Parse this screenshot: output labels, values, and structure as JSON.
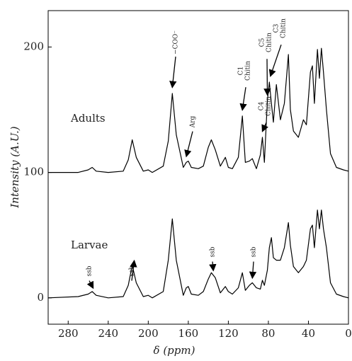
{
  "chart_data": {
    "type": "line",
    "xlabel": "δ (ppm)",
    "ylabel": "Intensity (A.U.)",
    "x": [
      300,
      270,
      260,
      256,
      252,
      240,
      225,
      220,
      216,
      212,
      205,
      200,
      196,
      185,
      180,
      176,
      172,
      165,
      162,
      160,
      157,
      150,
      145,
      140,
      137,
      133,
      128,
      123,
      120,
      116,
      110,
      106,
      103,
      99,
      96,
      92,
      88,
      86,
      84,
      81,
      79,
      77,
      75,
      72,
      68,
      64,
      60,
      58,
      55,
      50,
      45,
      42,
      38,
      36,
      34,
      31,
      29,
      27,
      25,
      22,
      18,
      12,
      5,
      0
    ],
    "series": [
      {
        "name": "Adults",
        "color": "#000000",
        "values": [
          100,
          100,
          102,
          104,
          101,
          100,
          101,
          110,
          126,
          112,
          101,
          102,
          100,
          105,
          125,
          163,
          130,
          104,
          108,
          109,
          104,
          103,
          105,
          120,
          126,
          118,
          105,
          112,
          104,
          103,
          112,
          145,
          108,
          109,
          111,
          103,
          114,
          128,
          108,
          157,
          172,
          155,
          140,
          170,
          142,
          155,
          194,
          150,
          133,
          128,
          142,
          138,
          180,
          185,
          155,
          198,
          175,
          199,
          180,
          150,
          115,
          104,
          102,
          101
        ]
      },
      {
        "name": "Larvae",
        "color": "#000000",
        "values": [
          0,
          1,
          3,
          5,
          2,
          0,
          1,
          10,
          26,
          12,
          1,
          2,
          0,
          5,
          30,
          63,
          30,
          2,
          8,
          9,
          3,
          2,
          5,
          15,
          20,
          16,
          4,
          9,
          5,
          3,
          8,
          20,
          6,
          10,
          12,
          8,
          7,
          14,
          10,
          22,
          40,
          48,
          32,
          30,
          30,
          40,
          60,
          42,
          25,
          20,
          25,
          30,
          55,
          58,
          40,
          70,
          55,
          70,
          55,
          40,
          12,
          3,
          1,
          0
        ]
      }
    ],
    "annotations": [
      {
        "lines": [
          "−COO⁻"
        ]
      },
      {
        "lines": [
          "Arg"
        ]
      },
      {
        "lines": [
          "C1",
          "Chitin"
        ]
      },
      {
        "lines": [
          "C4",
          "Chitin"
        ]
      },
      {
        "lines": [
          "C5",
          "Chitin"
        ]
      },
      {
        "lines": [
          "C3",
          "Chitin"
        ]
      },
      {
        "lines": [
          "ssb"
        ]
      },
      {
        "lines": [
          "ssb"
        ]
      },
      {
        "lines": [
          "ssb"
        ]
      },
      {
        "lines": [
          "ssb"
        ]
      }
    ],
    "xlim": [
      300,
      0
    ],
    "ylim": [
      -21,
      229
    ],
    "xticks": [
      280,
      240,
      200,
      160,
      120,
      80,
      40,
      0
    ],
    "yticks": [
      0,
      100,
      200
    ]
  }
}
